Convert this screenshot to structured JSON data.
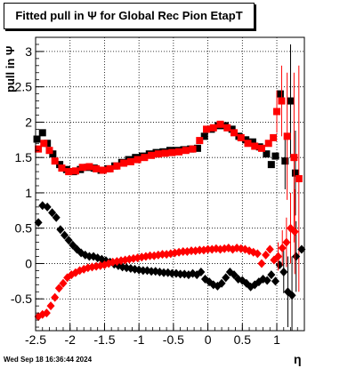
{
  "title": "Fitted pull in  Ψ  for Global Rec Pion EtapT",
  "xlabel": "η",
  "ylabel": "pull in  Ψ",
  "timestamp": "Wed Sep 18 16:36:44 2024",
  "chart_data": {
    "type": "scatter",
    "title": "Fitted pull in  Ψ  for Global Rec Pion EtapT",
    "xlabel": "η",
    "ylabel": "pull in  Ψ",
    "xlim": [
      -2.5,
      1.4
    ],
    "ylim": [
      -0.95,
      3.2
    ],
    "xticks": [
      "-2.5",
      "-2",
      "-1.5",
      "-1",
      "-0.5",
      "0",
      "0.5",
      "1"
    ],
    "yticks": [
      "-0.5",
      "0",
      "0.5",
      "1",
      "1.5",
      "2",
      "2.5",
      "3"
    ],
    "grid": true,
    "colors": {
      "black": "#000000",
      "red": "#ff0000"
    },
    "series": [
      {
        "marker": "square",
        "color": "#000000",
        "points": [
          [
            -2.48,
            1.76
          ],
          [
            -2.4,
            1.85
          ],
          [
            -2.33,
            1.7
          ],
          [
            -2.25,
            1.55
          ],
          [
            -2.15,
            1.4
          ],
          [
            -2.05,
            1.33
          ],
          [
            -1.95,
            1.3
          ],
          [
            -1.85,
            1.33
          ],
          [
            -1.75,
            1.36
          ],
          [
            -1.65,
            1.35
          ],
          [
            -1.55,
            1.32
          ],
          [
            -1.45,
            1.34
          ],
          [
            -1.35,
            1.38
          ],
          [
            -1.25,
            1.43
          ],
          [
            -1.15,
            1.47
          ],
          [
            -1.05,
            1.5
          ],
          [
            -0.95,
            1.52
          ],
          [
            -0.85,
            1.55
          ],
          [
            -0.75,
            1.57
          ],
          [
            -0.65,
            1.58
          ],
          [
            -0.55,
            1.6
          ],
          [
            -0.45,
            1.6
          ],
          [
            -0.35,
            1.61
          ],
          [
            -0.25,
            1.62
          ],
          [
            -0.15,
            1.63
          ],
          [
            -0.05,
            1.8
          ],
          [
            0.05,
            1.9
          ],
          [
            0.15,
            1.95
          ],
          [
            0.25,
            1.95
          ],
          [
            0.35,
            1.9
          ],
          [
            0.45,
            1.8
          ],
          [
            0.55,
            1.75
          ],
          [
            0.65,
            1.72
          ],
          [
            0.75,
            1.65
          ],
          [
            0.85,
            1.55
          ],
          [
            0.92,
            1.4
          ],
          [
            0.98,
            1.52
          ],
          [
            1.05,
            2.4
          ],
          [
            1.12,
            1.45
          ],
          [
            1.2,
            2.3
          ],
          [
            1.27,
            1.28
          ]
        ],
        "errors": [
          [
            1.1,
            0.3
          ],
          [
            1.12,
            0.4
          ],
          [
            1.2,
            0.8
          ],
          [
            1.27,
            0.6
          ]
        ]
      },
      {
        "marker": "square",
        "color": "#ff0000",
        "points": [
          [
            -2.46,
            1.62
          ],
          [
            -2.38,
            1.7
          ],
          [
            -2.3,
            1.6
          ],
          [
            -2.22,
            1.45
          ],
          [
            -2.12,
            1.35
          ],
          [
            -2.02,
            1.3
          ],
          [
            -1.92,
            1.31
          ],
          [
            -1.82,
            1.36
          ],
          [
            -1.72,
            1.37
          ],
          [
            -1.62,
            1.34
          ],
          [
            -1.52,
            1.32
          ],
          [
            -1.42,
            1.34
          ],
          [
            -1.32,
            1.38
          ],
          [
            -1.22,
            1.42
          ],
          [
            -1.12,
            1.44
          ],
          [
            -1.02,
            1.47
          ],
          [
            -0.92,
            1.5
          ],
          [
            -0.82,
            1.53
          ],
          [
            -0.72,
            1.55
          ],
          [
            -0.62,
            1.56
          ],
          [
            -0.52,
            1.57
          ],
          [
            -0.42,
            1.58
          ],
          [
            -0.32,
            1.6
          ],
          [
            -0.22,
            1.62
          ],
          [
            -0.12,
            1.74
          ],
          [
            -0.02,
            1.9
          ],
          [
            0.08,
            1.92
          ],
          [
            0.18,
            1.97
          ],
          [
            0.28,
            1.92
          ],
          [
            0.38,
            1.85
          ],
          [
            0.48,
            1.78
          ],
          [
            0.58,
            1.7
          ],
          [
            0.68,
            1.66
          ],
          [
            0.78,
            1.63
          ],
          [
            0.88,
            1.7
          ],
          [
            0.95,
            1.78
          ],
          [
            1.0,
            2.15
          ],
          [
            1.07,
            2.3
          ],
          [
            1.15,
            1.8
          ],
          [
            1.25,
            1.5
          ],
          [
            1.32,
            1.2
          ]
        ],
        "errors": [
          [
            1.0,
            0.3
          ],
          [
            1.07,
            0.5
          ],
          [
            1.15,
            0.9
          ],
          [
            1.25,
            1.2
          ],
          [
            1.32,
            1.6
          ]
        ]
      },
      {
        "marker": "diamond",
        "color": "#000000",
        "points": [
          [
            -2.46,
            0.58
          ],
          [
            -2.4,
            0.82
          ],
          [
            -2.33,
            0.8
          ],
          [
            -2.26,
            0.72
          ],
          [
            -2.2,
            0.65
          ],
          [
            -2.14,
            0.48
          ],
          [
            -2.08,
            0.4
          ],
          [
            -2.02,
            0.33
          ],
          [
            -1.96,
            0.26
          ],
          [
            -1.9,
            0.2
          ],
          [
            -1.84,
            0.15
          ],
          [
            -1.78,
            0.12
          ],
          [
            -1.72,
            0.1
          ],
          [
            -1.66,
            0.1
          ],
          [
            -1.6,
            0.08
          ],
          [
            -1.54,
            0.06
          ],
          [
            -1.48,
            0.04
          ],
          [
            -1.42,
            0.02
          ],
          [
            -1.36,
            -0.01
          ],
          [
            -1.3,
            -0.03
          ],
          [
            -1.24,
            -0.05
          ],
          [
            -1.18,
            -0.06
          ],
          [
            -1.12,
            -0.07
          ],
          [
            -1.06,
            -0.08
          ],
          [
            -1.0,
            -0.09
          ],
          [
            -0.94,
            -0.1
          ],
          [
            -0.88,
            -0.1
          ],
          [
            -0.82,
            -0.11
          ],
          [
            -0.76,
            -0.11
          ],
          [
            -0.7,
            -0.12
          ],
          [
            -0.64,
            -0.13
          ],
          [
            -0.58,
            -0.13
          ],
          [
            -0.52,
            -0.14
          ],
          [
            -0.46,
            -0.14
          ],
          [
            -0.4,
            -0.15
          ],
          [
            -0.34,
            -0.15
          ],
          [
            -0.28,
            -0.16
          ],
          [
            -0.22,
            -0.14
          ],
          [
            -0.16,
            -0.16
          ],
          [
            -0.1,
            -0.12
          ],
          [
            -0.04,
            -0.22
          ],
          [
            0.02,
            -0.26
          ],
          [
            0.08,
            -0.3
          ],
          [
            0.14,
            -0.32
          ],
          [
            0.2,
            -0.28
          ],
          [
            0.26,
            -0.2
          ],
          [
            0.32,
            -0.12
          ],
          [
            0.38,
            -0.16
          ],
          [
            0.44,
            -0.22
          ],
          [
            0.5,
            -0.24
          ],
          [
            0.56,
            -0.28
          ],
          [
            0.62,
            -0.33
          ],
          [
            0.68,
            -0.3
          ],
          [
            0.74,
            -0.26
          ],
          [
            0.8,
            -0.22
          ],
          [
            0.86,
            -0.24
          ],
          [
            0.92,
            -0.16
          ],
          [
            0.98,
            -0.25
          ],
          [
            1.04,
            -0.02
          ],
          [
            1.1,
            -0.12
          ],
          [
            1.16,
            -0.4
          ],
          [
            1.22,
            -0.45
          ],
          [
            1.28,
            0.1
          ],
          [
            1.36,
            0.2
          ]
        ],
        "errors": [
          [
            1.1,
            0.3
          ],
          [
            1.16,
            0.5
          ],
          [
            1.22,
            0.55
          ],
          [
            1.28,
            0.5
          ]
        ]
      },
      {
        "marker": "diamond",
        "color": "#ff0000",
        "points": [
          [
            -2.46,
            -0.75
          ],
          [
            -2.4,
            -0.72
          ],
          [
            -2.34,
            -0.7
          ],
          [
            -2.28,
            -0.6
          ],
          [
            -2.22,
            -0.48
          ],
          [
            -2.16,
            -0.35
          ],
          [
            -2.1,
            -0.28
          ],
          [
            -2.04,
            -0.2
          ],
          [
            -1.98,
            -0.16
          ],
          [
            -1.92,
            -0.13
          ],
          [
            -1.86,
            -0.1
          ],
          [
            -1.8,
            -0.08
          ],
          [
            -1.74,
            -0.06
          ],
          [
            -1.68,
            -0.05
          ],
          [
            -1.62,
            -0.04
          ],
          [
            -1.56,
            -0.03
          ],
          [
            -1.5,
            -0.02
          ],
          [
            -1.44,
            0.0
          ],
          [
            -1.38,
            0.02
          ],
          [
            -1.32,
            0.03
          ],
          [
            -1.26,
            0.04
          ],
          [
            -1.2,
            0.05
          ],
          [
            -1.14,
            0.06
          ],
          [
            -1.08,
            0.07
          ],
          [
            -1.02,
            0.08
          ],
          [
            -0.96,
            0.09
          ],
          [
            -0.9,
            0.1
          ],
          [
            -0.84,
            0.11
          ],
          [
            -0.78,
            0.11
          ],
          [
            -0.72,
            0.12
          ],
          [
            -0.66,
            0.13
          ],
          [
            -0.6,
            0.13
          ],
          [
            -0.54,
            0.14
          ],
          [
            -0.48,
            0.15
          ],
          [
            -0.42,
            0.16
          ],
          [
            -0.36,
            0.17
          ],
          [
            -0.3,
            0.17
          ],
          [
            -0.24,
            0.18
          ],
          [
            -0.18,
            0.18
          ],
          [
            -0.12,
            0.19
          ],
          [
            -0.06,
            0.19
          ],
          [
            0.0,
            0.2
          ],
          [
            0.06,
            0.2
          ],
          [
            0.12,
            0.21
          ],
          [
            0.18,
            0.2
          ],
          [
            0.24,
            0.21
          ],
          [
            0.3,
            0.22
          ],
          [
            0.36,
            0.2
          ],
          [
            0.42,
            0.22
          ],
          [
            0.48,
            0.21
          ],
          [
            0.54,
            0.2
          ],
          [
            0.6,
            0.18
          ],
          [
            0.66,
            0.16
          ],
          [
            0.72,
            0.14
          ],
          [
            0.78,
            0.0
          ],
          [
            0.84,
            0.12
          ],
          [
            0.9,
            0.2
          ],
          [
            0.96,
            0.05
          ],
          [
            1.02,
            0.1
          ],
          [
            1.08,
            0.22
          ],
          [
            1.14,
            0.3
          ],
          [
            1.2,
            0.5
          ],
          [
            1.26,
            0.45
          ]
        ],
        "errors": [
          [
            1.02,
            0.2
          ],
          [
            1.08,
            0.25
          ],
          [
            1.14,
            0.35
          ],
          [
            1.2,
            0.5
          ],
          [
            1.26,
            0.6
          ]
        ]
      }
    ]
  }
}
